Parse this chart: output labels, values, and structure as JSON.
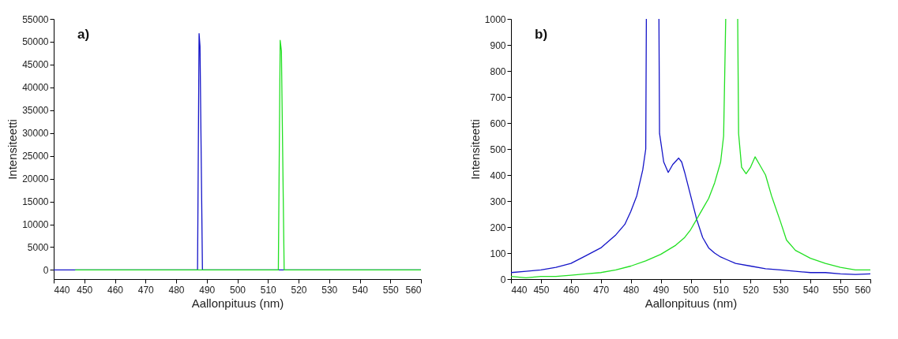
{
  "chart_data": [
    {
      "type": "line",
      "xlabel": "Aallonpituus (nm)",
      "ylabel": "Intensiteetti",
      "annotations": [
        "a)"
      ],
      "xlim": [
        440,
        560
      ],
      "xticks": [
        440,
        450,
        460,
        470,
        480,
        490,
        500,
        510,
        520,
        530,
        540,
        550,
        560
      ],
      "ylim": [
        -2000,
        55000
      ],
      "yticks": [
        0,
        5000,
        10000,
        15000,
        20000,
        25000,
        30000,
        35000,
        40000,
        45000,
        50000,
        55000
      ],
      "series": [
        {
          "color": "#1414c8",
          "x": [
            440,
            447,
            470,
            487.0,
            487.5,
            487.8,
            488.6,
            500,
            520,
            560
          ],
          "values": [
            0,
            0,
            0,
            0,
            51800,
            49000,
            0,
            0,
            0,
            0
          ]
        },
        {
          "color": "#22e022",
          "x": [
            447,
            480,
            500,
            513.4,
            514.0,
            514.4,
            515.3,
            530,
            560
          ],
          "values": [
            0,
            0,
            0,
            0,
            50300,
            48000,
            0,
            0,
            0
          ]
        }
      ]
    },
    {
      "type": "line",
      "xlabel": "Aallonpituus (nm)",
      "ylabel": "Intensiteetti",
      "annotations": [
        "b)"
      ],
      "xlim": [
        440,
        560
      ],
      "xticks": [
        440,
        450,
        460,
        470,
        480,
        490,
        500,
        510,
        520,
        530,
        540,
        550,
        560
      ],
      "ylim": [
        0,
        1000
      ],
      "yticks": [
        0,
        100,
        200,
        300,
        400,
        500,
        600,
        700,
        800,
        900,
        1000
      ],
      "series": [
        {
          "color": "#1414c8",
          "x": [
            440,
            445,
            450,
            455,
            460,
            465,
            470,
            475,
            478,
            480,
            482,
            484,
            485,
            485.2,
            487.5,
            489.4,
            489.6,
            491,
            492.5,
            494,
            496,
            497,
            498,
            500,
            502,
            504,
            506,
            508,
            510,
            512,
            515,
            520,
            525,
            530,
            535,
            540,
            545,
            550,
            555,
            560
          ],
          "values": [
            25,
            30,
            35,
            45,
            60,
            90,
            120,
            170,
            210,
            260,
            320,
            420,
            500,
            1000,
            null,
            1000,
            560,
            450,
            410,
            440,
            465,
            450,
            410,
            320,
            230,
            160,
            120,
            100,
            85,
            75,
            60,
            50,
            40,
            35,
            30,
            25,
            25,
            20,
            18,
            20
          ]
        },
        {
          "color": "#22e022",
          "x": [
            440,
            445,
            450,
            455,
            460,
            465,
            470,
            475,
            480,
            485,
            490,
            495,
            498,
            500,
            502,
            504,
            506,
            508,
            510,
            511,
            511.7,
            514,
            515.7,
            516,
            517,
            518.5,
            520,
            521.5,
            523,
            525,
            527,
            530,
            532,
            535,
            540,
            545,
            550,
            555,
            560
          ],
          "values": [
            10,
            5,
            10,
            10,
            15,
            20,
            25,
            35,
            50,
            70,
            95,
            130,
            160,
            190,
            230,
            270,
            310,
            370,
            450,
            550,
            1000,
            null,
            1000,
            560,
            430,
            405,
            430,
            470,
            440,
            400,
            320,
            220,
            150,
            110,
            80,
            60,
            45,
            35,
            35
          ]
        }
      ]
    }
  ]
}
